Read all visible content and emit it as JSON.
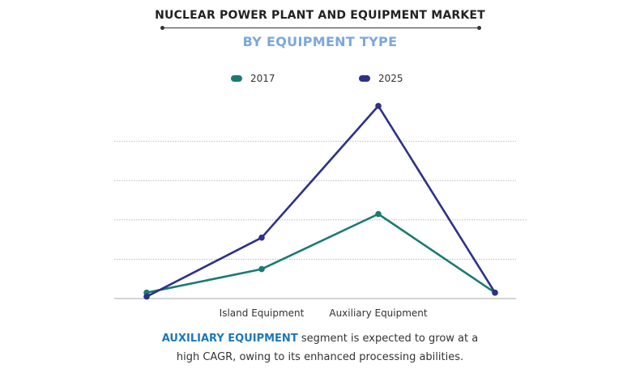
{
  "header": {
    "title": "NUCLEAR POWER PLANT AND EQUIPMENT MARKET",
    "subtitle": "BY EQUIPMENT TYPE"
  },
  "legend": [
    {
      "label": "2017",
      "color": "#1a7a74"
    },
    {
      "label": "2025",
      "color": "#2e3188"
    }
  ],
  "caption": {
    "highlight": "AUXILIARY EQUIPMENT",
    "line1_rest": " segment is expected to grow at a",
    "line2": "high CAGR, owing to its enhanced processing abilities."
  },
  "chart_data": {
    "type": "line",
    "categories": [
      "",
      "Island Equipment",
      "Auxiliary Equipment",
      ""
    ],
    "series": [
      {
        "name": "2017",
        "color": "#1a7a74",
        "values": [
          1.5,
          7.5,
          21.5,
          1.5
        ]
      },
      {
        "name": "2025",
        "color": "#2e3188",
        "values": [
          0.5,
          15.5,
          49,
          1.5
        ]
      }
    ],
    "ylim": [
      0,
      50
    ],
    "grid": true,
    "y_tick_labels_shown": false,
    "legend_position": "top-center"
  }
}
